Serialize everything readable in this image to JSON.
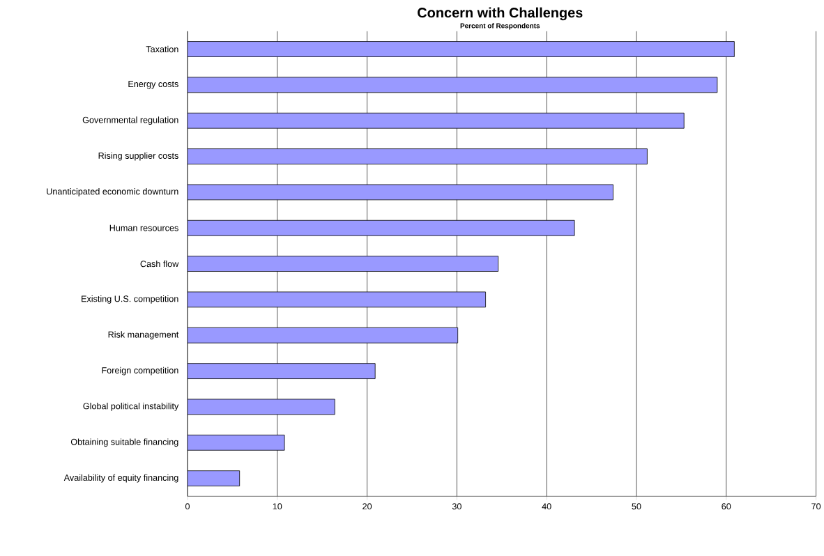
{
  "chart_data": {
    "type": "bar",
    "orientation": "horizontal",
    "title": "Concern with Challenges",
    "subtitle": "Percent of Respondents",
    "categories": [
      "Taxation",
      "Energy costs",
      "Governmental regulation",
      "Rising supplier costs",
      "Unanticipated economic downturn",
      "Human resources",
      "Cash flow",
      "Existing U.S. competition",
      "Risk management",
      "Foreign competition",
      "Global political instability",
      "Obtaining suitable financing",
      "Availability of equity financing"
    ],
    "values": [
      60.9,
      59.0,
      55.3,
      51.2,
      47.4,
      43.1,
      34.6,
      33.2,
      30.1,
      20.9,
      16.4,
      10.8,
      5.8
    ],
    "color": "#9999ff",
    "xlim": [
      0,
      70
    ],
    "xticks": [
      0,
      10,
      20,
      30,
      40,
      50,
      60,
      70
    ],
    "grid": "x"
  }
}
